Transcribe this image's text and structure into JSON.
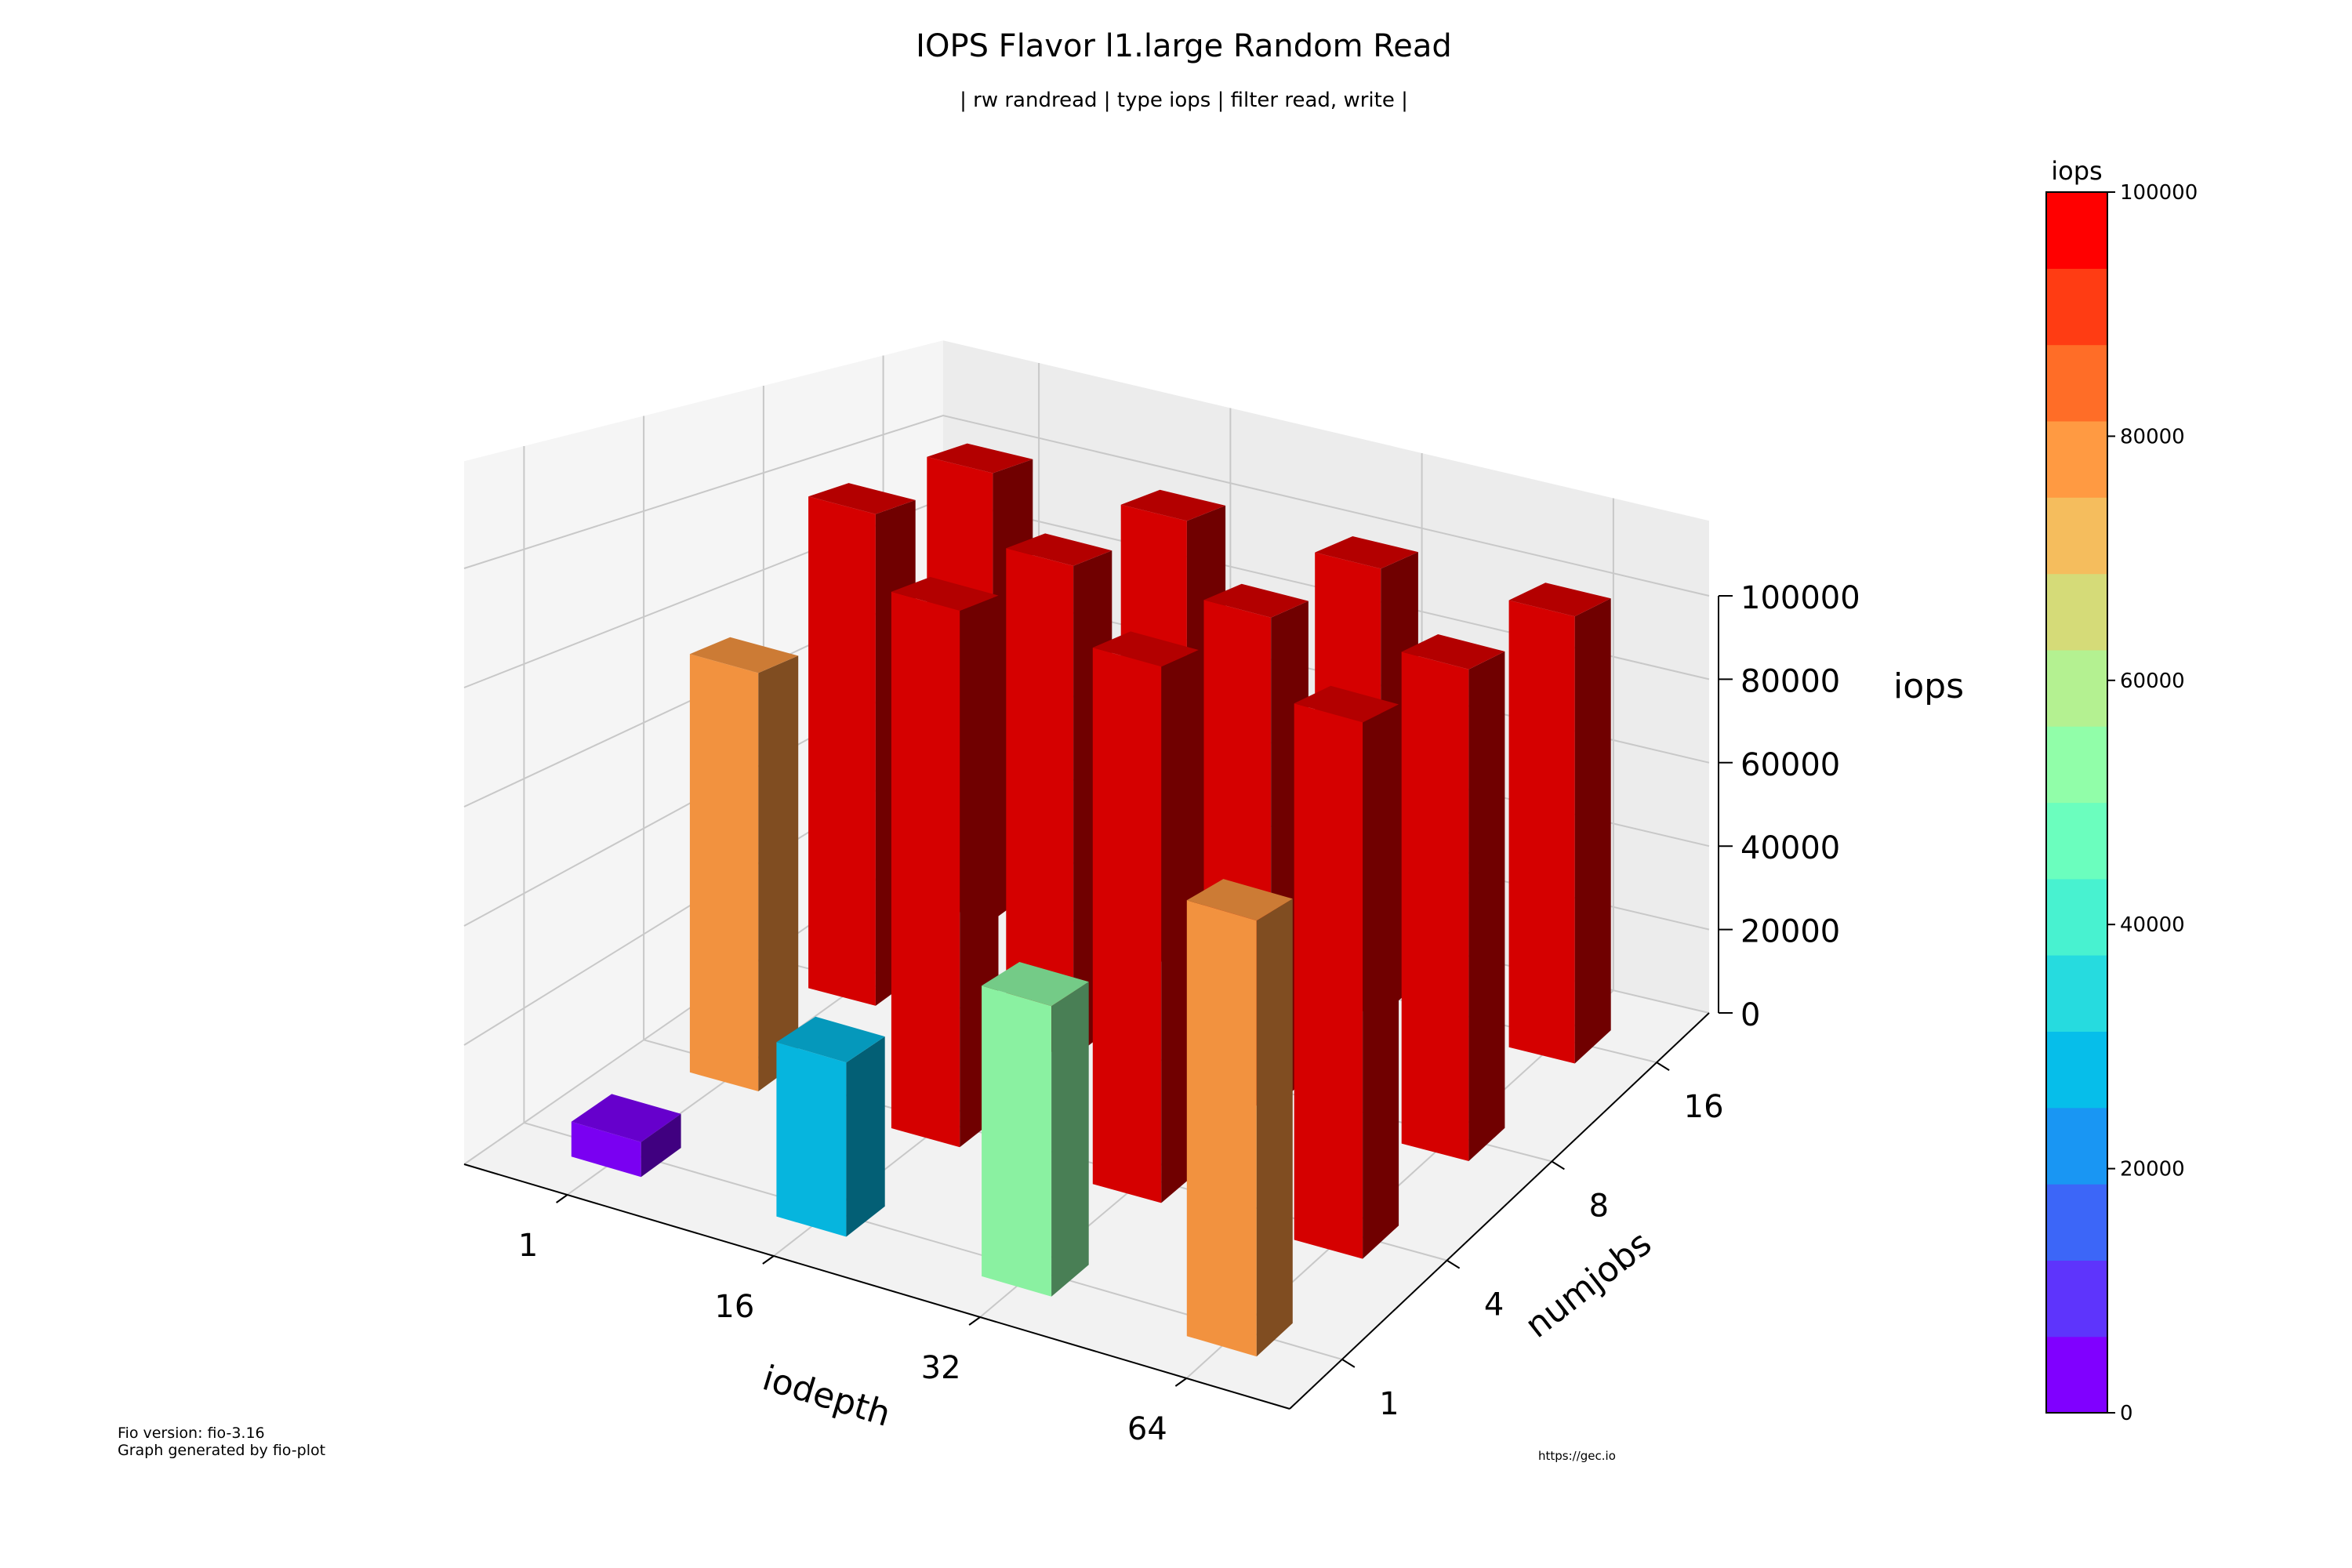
{
  "chart_data": {
    "type": "bar3d",
    "title": "IOPS Flavor l1.large Random Read",
    "subtitle": "| rw randread | type iops | filter read, write |",
    "xlabel": "iodepth",
    "ylabel": "numjobs",
    "zlabel": "iops",
    "iodepth": [
      "1",
      "16",
      "32",
      "64"
    ],
    "numjobs": [
      "1",
      "4",
      "8",
      "16"
    ],
    "values": [
      [
        6000,
        78000,
        100000,
        100000
      ],
      [
        30000,
        100000,
        100000,
        100000
      ],
      [
        50000,
        100000,
        100000,
        100000
      ],
      [
        75000,
        100000,
        100000,
        100000
      ]
    ],
    "zlim": [
      0,
      100000
    ],
    "zticks": [
      "0",
      "20000",
      "40000",
      "60000",
      "80000",
      "100000"
    ],
    "colorbar": {
      "title": "iops",
      "ticks": [
        "0",
        "20000",
        "40000",
        "60000",
        "80000",
        "100000"
      ],
      "colors": [
        "#8000ff",
        "#5e34fc",
        "#3c66f8",
        "#1996f3",
        "#06beea",
        "#26dbdf",
        "#48f2d0",
        "#6bfebe",
        "#91fea9",
        "#b4f191",
        "#d5db78",
        "#f5bd5d",
        "#ff9a42",
        "#ff6d27",
        "#ff3c13",
        "#ff0000"
      ]
    },
    "bar_color_max": "#e00000",
    "footer": {
      "version": "Fio version: fio-3.16",
      "generator": "Graph generated by fio-plot",
      "url": "https://gec.io"
    }
  }
}
